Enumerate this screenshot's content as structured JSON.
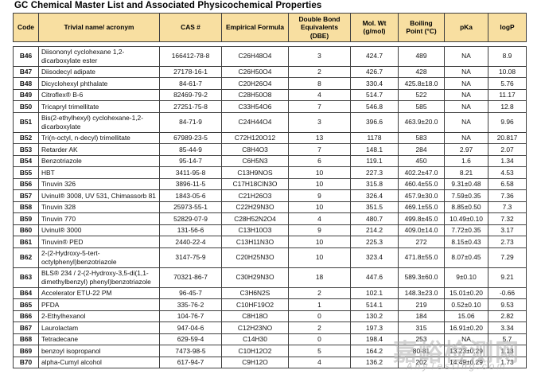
{
  "title": "GC Chemical Master List and Associated Physicochemical Properties",
  "colors": {
    "header_bg": "#F8DFA1",
    "border": "#3f3f3f",
    "watermark": "#AFAFAF"
  },
  "watermark": {
    "cjk": "嘉峪检测网",
    "latin": "AnyTesting.com"
  },
  "table": {
    "headers": [
      "Code",
      "Trivial name/ acronym",
      "CAS #",
      "Empirical Formula",
      "Double Bond Equivalents (DBE)",
      "Mol. Wt (g/mol)",
      "Boiling Point (°C)",
      "pKa",
      "logP"
    ],
    "column_keys": [
      "code",
      "name",
      "cas",
      "formula",
      "dbe",
      "mol_wt",
      "boiling_point",
      "pka",
      "logp"
    ],
    "rows": [
      {
        "code": "B46",
        "name": "Diisononyl cyclohexane 1,2-dicarboxylate ester",
        "cas": "166412-78-8",
        "formula": "C26H48O4",
        "dbe": "3",
        "mol_wt": "424.7",
        "boiling_point": "489",
        "pka": "NA",
        "logp": "8.9"
      },
      {
        "code": "B47",
        "name": "Diisodecyl adipate",
        "cas": "27178-16-1",
        "formula": "C26H50O4",
        "dbe": "2",
        "mol_wt": "426.7",
        "boiling_point": "428",
        "pka": "NA",
        "logp": "10.08"
      },
      {
        "code": "B48",
        "name": "Dicyclohexyl phthalate",
        "cas": "84-61-7",
        "formula": "C20H26O4",
        "dbe": "8",
        "mol_wt": "330.4",
        "boiling_point": "425.8±18.0",
        "pka": "NA",
        "logp": "5.76"
      },
      {
        "code": "B49",
        "name": "Citroflex® B-6",
        "cas": "82469-79-2",
        "formula": "C28H50O8",
        "dbe": "4",
        "mol_wt": "514.7",
        "boiling_point": "522",
        "pka": "NA",
        "logp": "11.17"
      },
      {
        "code": "B50",
        "name": "Tricapryl trimellitate",
        "cas": "27251-75-8",
        "formula": "C33H54O6",
        "dbe": "7",
        "mol_wt": "546.8",
        "boiling_point": "585",
        "pka": "NA",
        "logp": "12.8"
      },
      {
        "code": "B51",
        "name": "Bis(2-ethylhexyl) cyclohexane-1,2-dicarboxylate",
        "cas": "84-71-9",
        "formula": "C24H44O4",
        "dbe": "3",
        "mol_wt": "396.6",
        "boiling_point": "463.9±20.0",
        "pka": "NA",
        "logp": "9.96"
      },
      {
        "code": "B52",
        "name": "Tri(n-octyl, n-decyl) trimellitate",
        "cas": "67989-23-5",
        "formula": "C72H120O12",
        "dbe": "13",
        "mol_wt": "1178",
        "boiling_point": "583",
        "pka": "NA",
        "logp": "20.817"
      },
      {
        "code": "B53",
        "name": "Retarder AK",
        "cas": "85-44-9",
        "formula": "C8H4O3",
        "dbe": "7",
        "mol_wt": "148.1",
        "boiling_point": "284",
        "pka": "2.97",
        "logp": "2.07"
      },
      {
        "code": "B54",
        "name": "Benzotriazole",
        "cas": "95-14-7",
        "formula": "C6H5N3",
        "dbe": "6",
        "mol_wt": "119.1",
        "boiling_point": "450",
        "pka": "1.6",
        "logp": "1.34"
      },
      {
        "code": "B55",
        "name": "HBT",
        "cas": "3411-95-8",
        "formula": "C13H9NOS",
        "dbe": "10",
        "mol_wt": "227.3",
        "boiling_point": "402.2±47.0",
        "pka": "8.21",
        "logp": "4.53"
      },
      {
        "code": "B56",
        "name": "Tinuvin 326",
        "cas": "3896-11-5",
        "formula": "C17H18ClN3O",
        "dbe": "10",
        "mol_wt": "315.8",
        "boiling_point": "460.4±55.0",
        "pka": "9.31±0.48",
        "logp": "6.58"
      },
      {
        "code": "B57",
        "name": "Uvinul® 3008, UV 531, Chimassorb 81",
        "cas": "1843-05-6",
        "formula": "C21H26O3",
        "dbe": "9",
        "mol_wt": "326.4",
        "boiling_point": "457.9±30.0",
        "pka": "7.59±0.35",
        "logp": "7.36"
      },
      {
        "code": "B58",
        "name": "Tinuvin 328",
        "cas": "25973-55-1",
        "formula": "C22H29N3O",
        "dbe": "10",
        "mol_wt": "351.5",
        "boiling_point": "469.1±55.0",
        "pka": "8.85±0.50",
        "logp": "7.3"
      },
      {
        "code": "B59",
        "name": "Tinuvin 770",
        "cas": "52829-07-9",
        "formula": "C28H52N2O4",
        "dbe": "4",
        "mol_wt": "480.7",
        "boiling_point": "499.8±45.0",
        "pka": "10.49±0.10",
        "logp": "7.32"
      },
      {
        "code": "B60",
        "name": "Uvinul® 3000",
        "cas": "131-56-6",
        "formula": "C13H10O3",
        "dbe": "9",
        "mol_wt": "214.2",
        "boiling_point": "409.0±14.0",
        "pka": "7.72±0.35",
        "logp": "3.17"
      },
      {
        "code": "B61",
        "name": "Tinuvin® PED",
        "cas": "2440-22-4",
        "formula": "C13H11N3O",
        "dbe": "10",
        "mol_wt": "225.3",
        "boiling_point": "272",
        "pka": "8.15±0.43",
        "logp": "2.73"
      },
      {
        "code": "B62",
        "name": "2-(2-Hydroxy-5-tert-octylphenyl)benzotriazole",
        "cas": "3147-75-9",
        "formula": "C20H25N3O",
        "dbe": "10",
        "mol_wt": "323.4",
        "boiling_point": "471.8±55.0",
        "pka": "8.07±0.45",
        "logp": "7.29"
      },
      {
        "code": "B63",
        "name": "BLS® 234 / 2-(2-Hydroxy-3,5-di(1,1-dimethylbenzyl) phenyl)benzotriazole",
        "cas": "70321-86-7",
        "formula": "C30H29N3O",
        "dbe": "18",
        "mol_wt": "447.6",
        "boiling_point": "589.3±60.0",
        "pka": "9±0.10",
        "logp": "9.21"
      },
      {
        "code": "B64",
        "name": "Accelerator ETU-22 PM",
        "cas": "96-45-7",
        "formula": "C3H6N2S",
        "dbe": "2",
        "mol_wt": "102.1",
        "boiling_point": "148.3±23.0",
        "pka": "15.01±0.20",
        "logp": "-0.66"
      },
      {
        "code": "B65",
        "name": "PFDA",
        "cas": "335-76-2",
        "formula": "C10HF19O2",
        "dbe": "1",
        "mol_wt": "514.1",
        "boiling_point": "219",
        "pka": "0.52±0.10",
        "logp": "9.53"
      },
      {
        "code": "B66",
        "name": "2-Ethylhexanol",
        "cas": "104-76-7",
        "formula": "C8H18O",
        "dbe": "0",
        "mol_wt": "130.2",
        "boiling_point": "184",
        "pka": "15.06",
        "logp": "2.82"
      },
      {
        "code": "B67",
        "name": "Laurolactam",
        "cas": "947-04-6",
        "formula": "C12H23NO",
        "dbe": "2",
        "mol_wt": "197.3",
        "boiling_point": "315",
        "pka": "16.91±0.20",
        "logp": "3.34"
      },
      {
        "code": "B68",
        "name": "Tetradecane",
        "cas": "629-59-4",
        "formula": "C14H30",
        "dbe": "0",
        "mol_wt": "198.4",
        "boiling_point": "253",
        "pka": "NA",
        "logp": "5.7"
      },
      {
        "code": "B69",
        "name": "benzoyl isopropanol",
        "cas": "7473-98-5",
        "formula": "C10H12O2",
        "dbe": "5",
        "mol_wt": "164.2",
        "boiling_point": "80-81",
        "pka": "13.23±0.29",
        "logp": "1.13"
      },
      {
        "code": "B70",
        "name": "alpha-Cumyl alcohol",
        "cas": "617-94-7",
        "formula": "C9H12O",
        "dbe": "4",
        "mol_wt": "136.2",
        "boiling_point": "202",
        "pka": "14.49±0.29",
        "logp": "1.73"
      }
    ]
  }
}
